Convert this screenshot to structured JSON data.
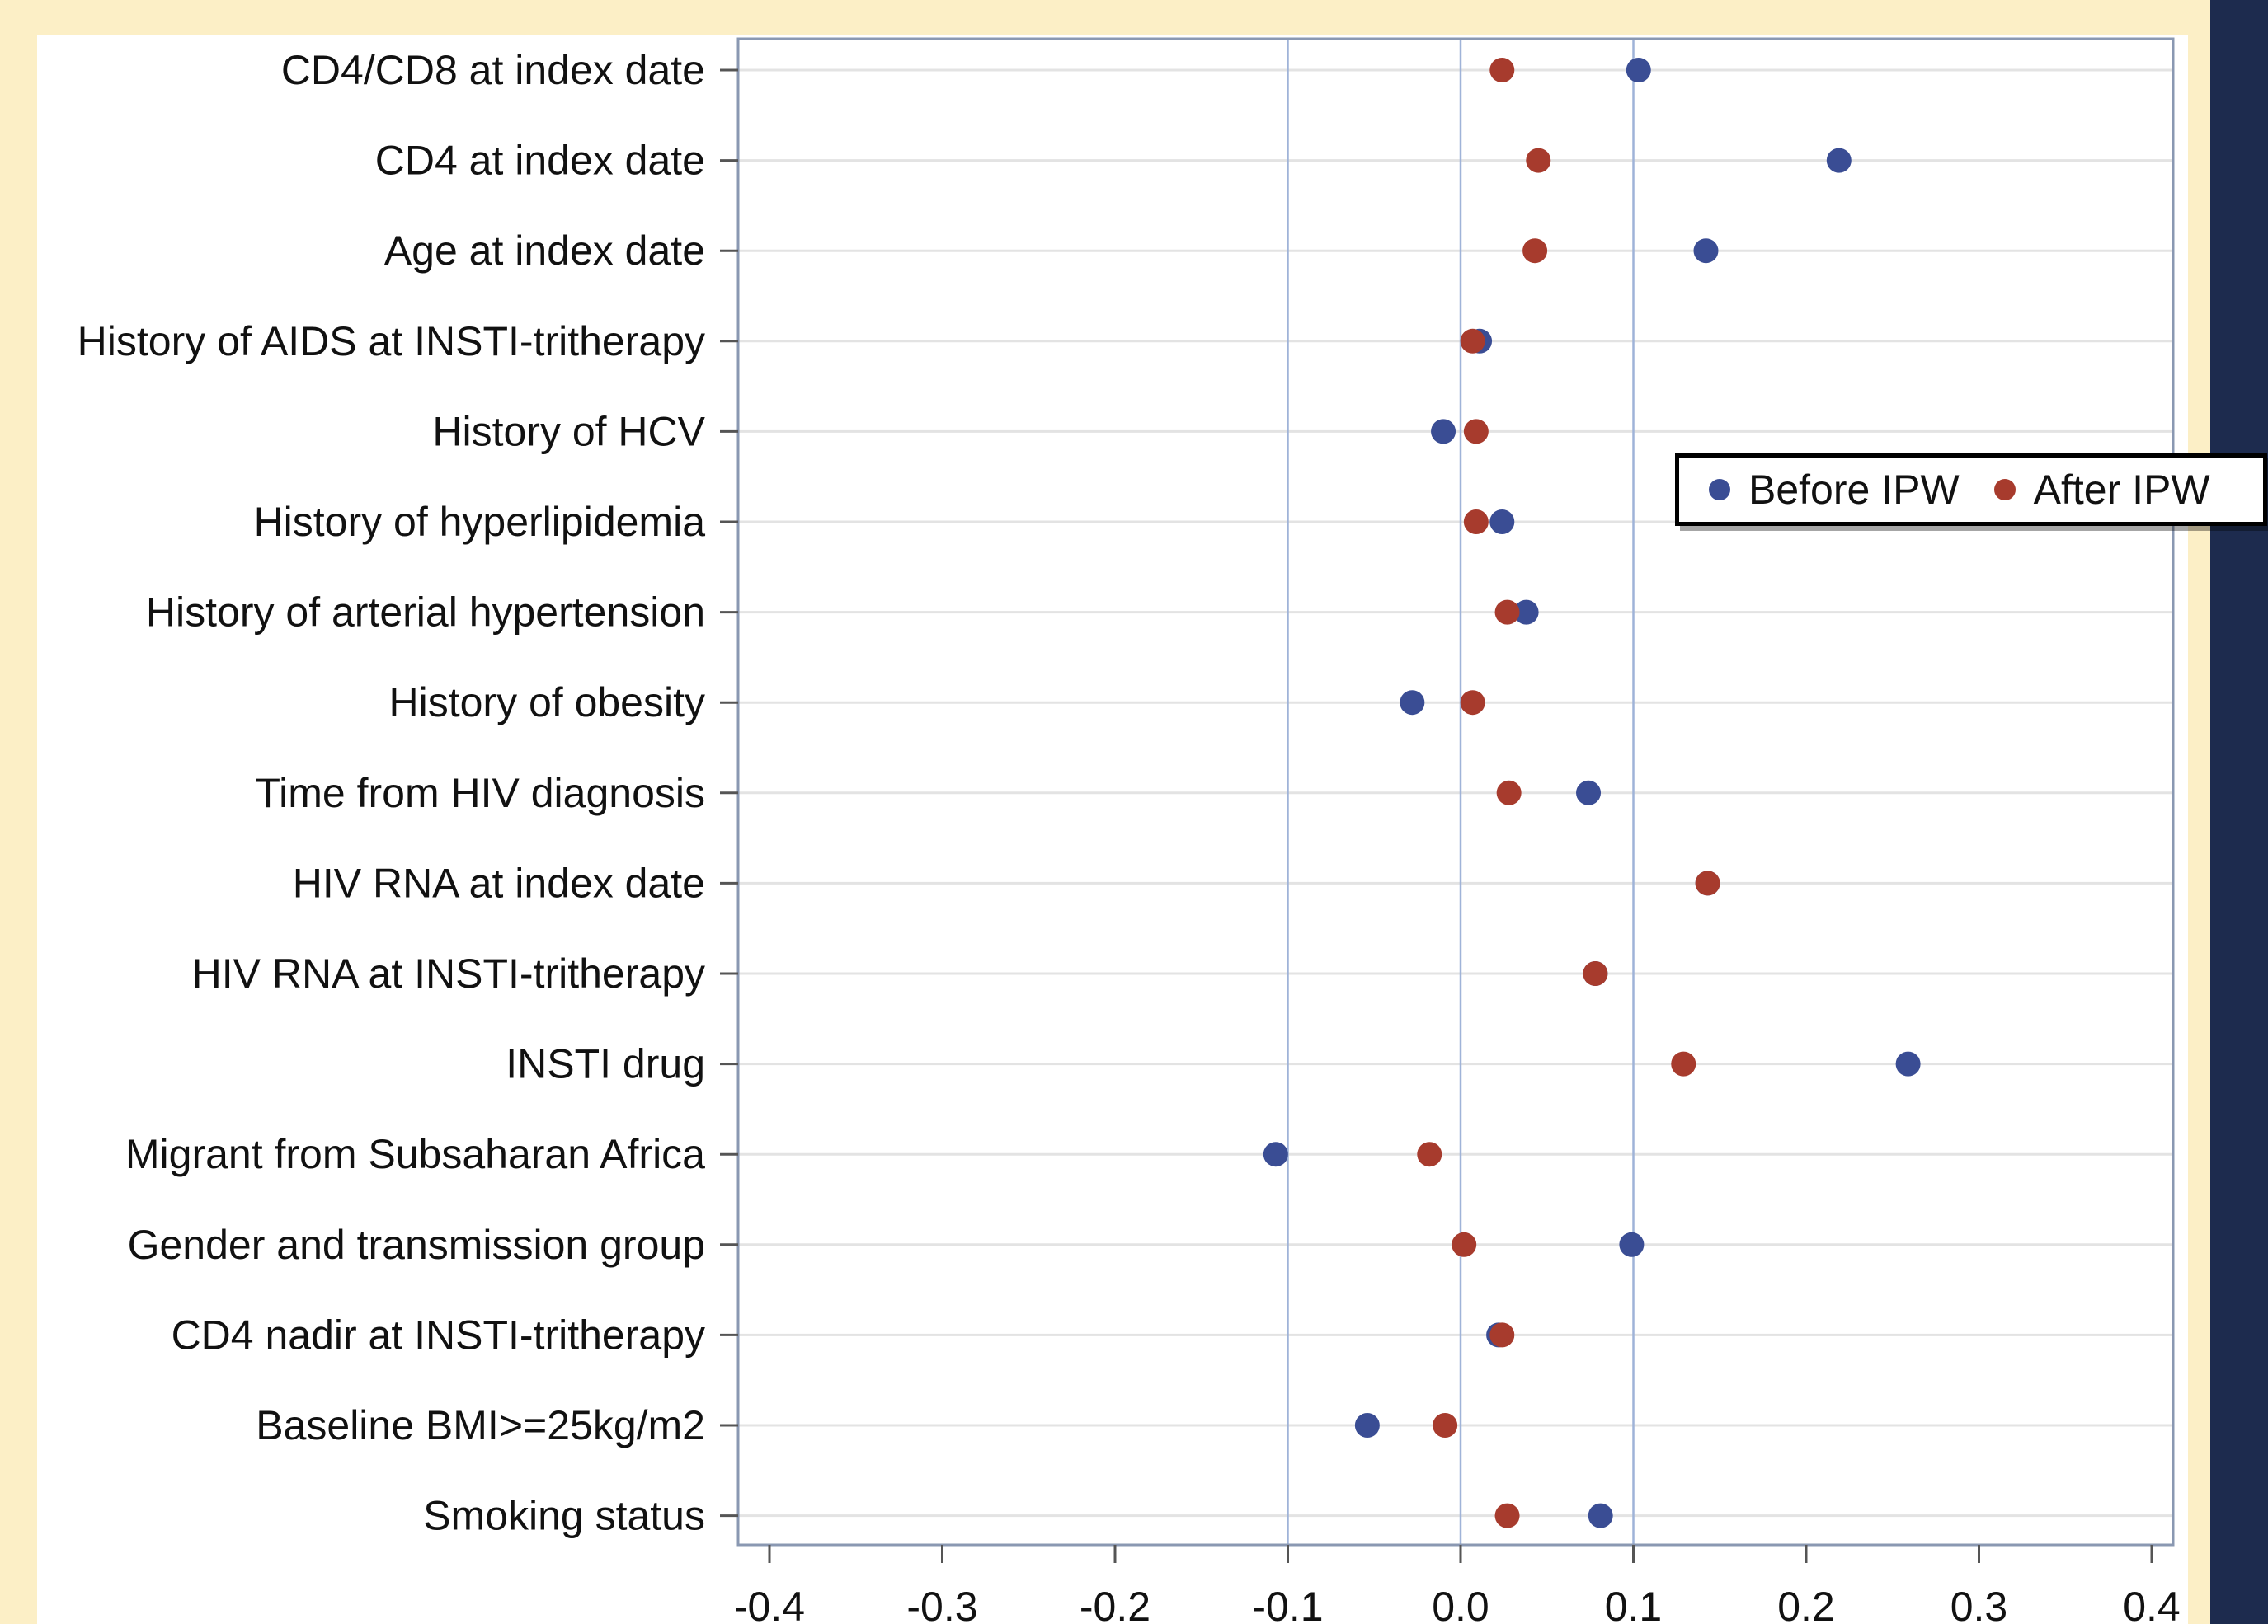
{
  "chart_data": {
    "type": "scatter",
    "categories": [
      "CD4/CD8 at index date",
      "CD4 at index date",
      "Age at index date",
      "History of AIDS at INSTI-tritherapy",
      "History of HCV",
      "History of hyperlipidemia",
      "History of arterial hypertension",
      "History of obesity",
      "Time from HIV diagnosis",
      "HIV RNA at index date",
      "HIV RNA at INSTI-tritherapy",
      "INSTI drug",
      "Migrant from Subsaharan Africa",
      "Gender and transmission group",
      "CD4 nadir at INSTI-tritherapy",
      "Baseline BMI>=25kg/m2",
      "Smoking status"
    ],
    "series": [
      {
        "name": "Before IPW",
        "color": "#3a4d94",
        "values": [
          0.103,
          0.219,
          0.142,
          0.011,
          -0.01,
          0.024,
          0.038,
          -0.028,
          0.074,
          0.143,
          0.078,
          0.259,
          -0.107,
          0.099,
          0.022,
          -0.054,
          0.081
        ]
      },
      {
        "name": "After IPW",
        "color": "#a73b2d",
        "values": [
          0.024,
          0.045,
          0.043,
          0.007,
          0.009,
          0.009,
          0.027,
          0.007,
          0.028,
          0.143,
          0.078,
          0.129,
          -0.018,
          0.002,
          0.024,
          -0.009,
          0.027
        ]
      }
    ],
    "xlim": [
      -0.4,
      0.4
    ],
    "xticks": [
      "-0.4",
      "-0.3",
      "-0.2",
      "-0.1",
      "0.0",
      "0.1",
      "0.2",
      "0.3",
      "0.4"
    ],
    "reference_lines": [
      -0.1,
      0.0,
      0.1
    ],
    "grid": "horizontal",
    "legend_position": "right-top"
  }
}
